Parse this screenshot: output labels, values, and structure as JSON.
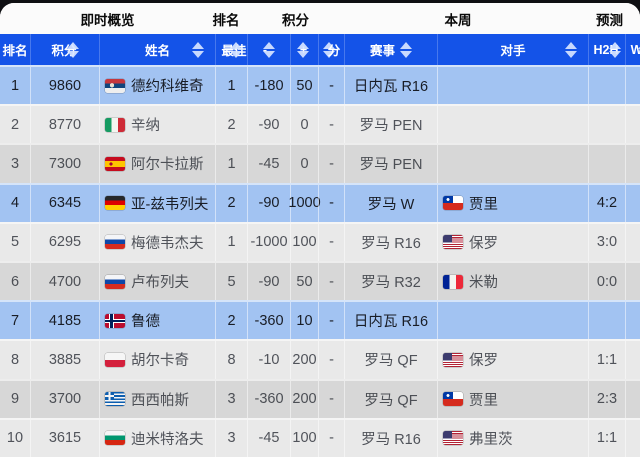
{
  "colors": {
    "header_bg": "#1453e8",
    "highlight_row_bg": "#a2c3f2",
    "row_light_bg": "#e9e9e9",
    "row_dark_bg": "#d7d7d7",
    "header_text": "#ffffff",
    "page_bg": "#0e0f12"
  },
  "group_header": {
    "items": [
      {
        "label": "即时概览"
      },
      {
        "label": "排名"
      },
      {
        "label": "积分"
      },
      {
        "label": "本周"
      },
      {
        "label": "预测"
      }
    ]
  },
  "table": {
    "columns": [
      {
        "key": "rank",
        "label": "排名"
      },
      {
        "key": "points",
        "label": "积分"
      },
      {
        "key": "name",
        "label": "姓名"
      },
      {
        "key": "best",
        "label": "最佳"
      },
      {
        "key": "minus",
        "label": "-"
      },
      {
        "key": "plus",
        "label": "+"
      },
      {
        "key": "fen",
        "label": "分"
      },
      {
        "key": "event",
        "label": "赛事"
      },
      {
        "key": "opponent",
        "label": "对手"
      },
      {
        "key": "h2h",
        "label": "H2H"
      },
      {
        "key": "w",
        "label": "W"
      }
    ],
    "rows": [
      {
        "rank": "1",
        "points": "9860",
        "flag": "serbia",
        "name": "德约科维奇",
        "best": "1",
        "minus": "-180",
        "plus": "50",
        "fen": "-",
        "event": "日内瓦 R16",
        "opp_flag": "",
        "opponent": "",
        "h2h": "",
        "highlight": true
      },
      {
        "rank": "2",
        "points": "8770",
        "flag": "italy",
        "name": "辛纳",
        "best": "2",
        "minus": "-90",
        "plus": "0",
        "fen": "-",
        "event": "罗马 PEN",
        "opp_flag": "",
        "opponent": "",
        "h2h": "",
        "highlight": false
      },
      {
        "rank": "3",
        "points": "7300",
        "flag": "spain",
        "name": "阿尔卡拉斯",
        "best": "1",
        "minus": "-45",
        "plus": "0",
        "fen": "-",
        "event": "罗马 PEN",
        "opp_flag": "",
        "opponent": "",
        "h2h": "",
        "highlight": false
      },
      {
        "rank": "4",
        "points": "6345",
        "flag": "germany",
        "name": "亚-兹韦列夫",
        "best": "2",
        "minus": "-90",
        "plus": "1000",
        "fen": "-",
        "event": "罗马 W",
        "opp_flag": "chile",
        "opponent": "贾里",
        "h2h": "4:2",
        "highlight": true
      },
      {
        "rank": "5",
        "points": "6295",
        "flag": "russia",
        "name": "梅德韦杰夫",
        "best": "1",
        "minus": "-1000",
        "plus": "100",
        "fen": "-",
        "event": "罗马 R16",
        "opp_flag": "usa",
        "opponent": "保罗",
        "h2h": "3:0",
        "highlight": false
      },
      {
        "rank": "6",
        "points": "4700",
        "flag": "russia",
        "name": "卢布列夫",
        "best": "5",
        "minus": "-90",
        "plus": "50",
        "fen": "-",
        "event": "罗马 R32",
        "opp_flag": "france",
        "opponent": "米勒",
        "h2h": "0:0",
        "highlight": false
      },
      {
        "rank": "7",
        "points": "4185",
        "flag": "norway",
        "name": "鲁德",
        "best": "2",
        "minus": "-360",
        "plus": "10",
        "fen": "-",
        "event": "日内瓦 R16",
        "opp_flag": "",
        "opponent": "",
        "h2h": "",
        "highlight": true
      },
      {
        "rank": "8",
        "points": "3885",
        "flag": "poland",
        "name": "胡尔卡奇",
        "best": "8",
        "minus": "-10",
        "plus": "200",
        "fen": "-",
        "event": "罗马 QF",
        "opp_flag": "usa",
        "opponent": "保罗",
        "h2h": "1:1",
        "highlight": false
      },
      {
        "rank": "9",
        "points": "3700",
        "flag": "greece",
        "name": "西西帕斯",
        "best": "3",
        "minus": "-360",
        "plus": "200",
        "fen": "-",
        "event": "罗马 QF",
        "opp_flag": "chile",
        "opponent": "贾里",
        "h2h": "2:3",
        "highlight": false
      },
      {
        "rank": "10",
        "points": "3615",
        "flag": "bulgaria",
        "name": "迪米特洛夫",
        "best": "3",
        "minus": "-45",
        "plus": "100",
        "fen": "-",
        "event": "罗马 R16",
        "opp_flag": "usa",
        "opponent": "弗里茨",
        "h2h": "1:1",
        "highlight": false
      }
    ]
  }
}
